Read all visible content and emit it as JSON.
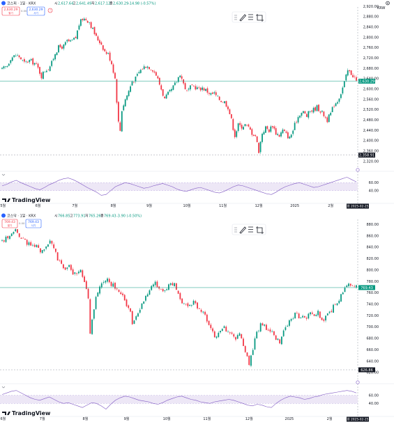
{
  "panels": [
    {
      "symbol": "코스피 · 1일 · KRX",
      "ohlc": {
        "open_label": "시",
        "open": "2,617.64",
        "high_label": "고",
        "high": "2,641.49",
        "low_label": "저",
        "low": "2,617.12",
        "close_label": "종",
        "close": "2,630.29",
        "change": "-14.98 (-0.57%)"
      },
      "sell_price": "2,630.29",
      "sell_label": "팔기",
      "spread": "0.00",
      "buy_price": "2,630.29",
      "buy_label": "사기",
      "currency": "KRW",
      "last_price_tag": "2,630.29",
      "low_price_tag": "2,358.91",
      "date_tag": "화 2025-02-25",
      "indicator_marks": [
        "60.00",
        "40.00"
      ],
      "colors": {
        "up": "#089981",
        "down": "#f23645",
        "rsi": "#7e57c2",
        "last": "#089981",
        "band": "#ede7f6"
      },
      "chart_data": {
        "type": "candlestick",
        "title": "코스피 · 1일 · KRX",
        "ylim": [
          2300,
          2920
        ],
        "yticks": [
          "2,920.00",
          "2,880.00",
          "2,840.00",
          "2,800.00",
          "2,760.00",
          "2,720.00",
          "2,680.00",
          "2,640.00",
          "2,600.00",
          "2,560.00",
          "2,520.00",
          "2,480.00",
          "2,440.00",
          "2,400.00",
          "2,360.00",
          "2,320.00"
        ],
        "ytick_values": [
          2920,
          2880,
          2840,
          2800,
          2760,
          2720,
          2680,
          2640,
          2600,
          2560,
          2520,
          2480,
          2440,
          2400,
          2360,
          2320
        ],
        "xticks": [
          "5월",
          "6월",
          "7월",
          "8월",
          "9월",
          "10월",
          "11월",
          "12월",
          "2025",
          "2월"
        ],
        "xtick_positions": [
          0.5,
          21,
          42.5,
          65,
          86,
          108,
          129,
          150,
          171,
          192
        ],
        "n_bars": 208,
        "close_path": [
          [
            0,
            2675
          ],
          [
            3,
            2690
          ],
          [
            5,
            2720
          ],
          [
            8,
            2730
          ],
          [
            10,
            2725
          ],
          [
            13,
            2700
          ],
          [
            16,
            2710
          ],
          [
            19,
            2700
          ],
          [
            21,
            2680
          ],
          [
            23,
            2650
          ],
          [
            25,
            2672
          ],
          [
            27,
            2680
          ],
          [
            29,
            2700
          ],
          [
            31,
            2740
          ],
          [
            33,
            2760
          ],
          [
            36,
            2765
          ],
          [
            38,
            2785
          ],
          [
            40,
            2780
          ],
          [
            43,
            2798
          ],
          [
            45,
            2850
          ],
          [
            47,
            2872
          ],
          [
            49,
            2870
          ],
          [
            51,
            2860
          ],
          [
            53,
            2830
          ],
          [
            55,
            2800
          ],
          [
            58,
            2775
          ],
          [
            60,
            2745
          ],
          [
            62,
            2735
          ],
          [
            64,
            2700
          ],
          [
            66,
            2641
          ],
          [
            68,
            2470
          ],
          [
            69,
            2440
          ],
          [
            70,
            2520
          ],
          [
            72,
            2560
          ],
          [
            74,
            2592
          ],
          [
            76,
            2630
          ],
          [
            78,
            2640
          ],
          [
            80,
            2665
          ],
          [
            82,
            2680
          ],
          [
            84,
            2690
          ],
          [
            86,
            2685
          ],
          [
            88,
            2676
          ],
          [
            90,
            2655
          ],
          [
            93,
            2600
          ],
          [
            95,
            2560
          ],
          [
            97,
            2580
          ],
          [
            99,
            2595
          ],
          [
            102,
            2630
          ],
          [
            104,
            2660
          ],
          [
            106,
            2620
          ],
          [
            108,
            2590
          ],
          [
            110,
            2605
          ],
          [
            112,
            2610
          ],
          [
            115,
            2600
          ],
          [
            117,
            2605
          ],
          [
            120,
            2590
          ],
          [
            122,
            2580
          ],
          [
            124,
            2582
          ],
          [
            126,
            2565
          ],
          [
            128,
            2555
          ],
          [
            130,
            2550
          ],
          [
            132,
            2530
          ],
          [
            134,
            2480
          ],
          [
            136,
            2420
          ],
          [
            138,
            2460
          ],
          [
            140,
            2455
          ],
          [
            142,
            2462
          ],
          [
            144,
            2450
          ],
          [
            146,
            2430
          ],
          [
            148,
            2420
          ],
          [
            150,
            2360
          ],
          [
            152,
            2430
          ],
          [
            154,
            2450
          ],
          [
            156,
            2440
          ],
          [
            158,
            2460
          ],
          [
            160,
            2430
          ],
          [
            162,
            2420
          ],
          [
            164,
            2440
          ],
          [
            166,
            2425
          ],
          [
            168,
            2410
          ],
          [
            170,
            2440
          ],
          [
            172,
            2480
          ],
          [
            174,
            2505
          ],
          [
            176,
            2510
          ],
          [
            178,
            2495
          ],
          [
            180,
            2515
          ],
          [
            182,
            2520
          ],
          [
            184,
            2530
          ],
          [
            186,
            2515
          ],
          [
            188,
            2500
          ],
          [
            190,
            2480
          ],
          [
            192,
            2505
          ],
          [
            194,
            2540
          ],
          [
            196,
            2555
          ],
          [
            198,
            2585
          ],
          [
            200,
            2625
          ],
          [
            202,
            2670
          ],
          [
            204,
            2660
          ],
          [
            206,
            2645
          ],
          [
            207,
            2630
          ]
        ],
        "rsi": {
          "ylim": [
            20,
            80
          ],
          "marks": [
            60,
            40
          ],
          "values": [
            52,
            56,
            62,
            66,
            60,
            55,
            50,
            45,
            42,
            48,
            55,
            60,
            66,
            70,
            72,
            68,
            62,
            55,
            48,
            42,
            36,
            28,
            30,
            40,
            50,
            55,
            60,
            58,
            54,
            50,
            46,
            48,
            52,
            55,
            58,
            54,
            50,
            44,
            40,
            38,
            42,
            46,
            48,
            44,
            40,
            36,
            34,
            38,
            44,
            50,
            54,
            52,
            48,
            44,
            40,
            36,
            32,
            30,
            36,
            44,
            50,
            54,
            58,
            60,
            56,
            52,
            48,
            50,
            54,
            58,
            62,
            66,
            70,
            74,
            68,
            62
          ]
        }
      }
    },
    {
      "symbol": "코스닥 · 1일 · KRX",
      "ohlc": {
        "open_label": "시",
        "open": "766.85",
        "high_label": "고",
        "high": "773.91",
        "low_label": "저",
        "low": "765.26",
        "close_label": "종",
        "close": "769.43",
        "change": "-3.90 (-0.50%)"
      },
      "sell_price": "769.43",
      "sell_label": "팔기",
      "spread": "0.00",
      "buy_price": "769.43",
      "buy_label": "사기",
      "currency": "KRW",
      "last_price_tag": "769.43",
      "low_price_tag": "626.86",
      "date_tag": "화 2025-02-25",
      "indicator_marks": [
        "60.00",
        "40.00"
      ],
      "colors": {
        "up": "#089981",
        "down": "#f23645",
        "rsi": "#7e57c2",
        "last": "#089981",
        "band": "#ede7f6"
      },
      "chart_data": {
        "type": "candlestick",
        "title": "코스닥 · 1일 · KRX",
        "ylim": [
          610,
          890
        ],
        "yticks": [
          "880.00",
          "860.00",
          "840.00",
          "820.00",
          "800.00",
          "780.00",
          "760.00",
          "740.00",
          "720.00",
          "700.00",
          "680.00",
          "660.00",
          "640.00",
          "620.00"
        ],
        "ytick_values": [
          880,
          860,
          840,
          820,
          800,
          780,
          760,
          740,
          720,
          700,
          680,
          660,
          640,
          620
        ],
        "xticks": [
          "6월",
          "7월",
          "8월",
          "9월",
          "10월",
          "11월",
          "12월",
          "2025",
          "2월"
        ],
        "xtick_positions": [
          0.5,
          21,
          43.5,
          65,
          86,
          107,
          129,
          150,
          171
        ],
        "n_bars": 186,
        "close_path": [
          [
            0,
            850
          ],
          [
            3,
            858
          ],
          [
            5,
            865
          ],
          [
            7,
            870
          ],
          [
            9,
            862
          ],
          [
            11,
            855
          ],
          [
            13,
            848
          ],
          [
            16,
            845
          ],
          [
            19,
            838
          ],
          [
            21,
            832
          ],
          [
            23,
            840
          ],
          [
            25,
            850
          ],
          [
            27,
            838
          ],
          [
            29,
            820
          ],
          [
            31,
            810
          ],
          [
            33,
            800
          ],
          [
            35,
            805
          ],
          [
            37,
            790
          ],
          [
            39,
            796
          ],
          [
            41,
            800
          ],
          [
            43,
            780
          ],
          [
            45,
            748
          ],
          [
            46,
            690
          ],
          [
            47,
            715
          ],
          [
            49,
            750
          ],
          [
            51,
            770
          ],
          [
            53,
            780
          ],
          [
            55,
            785
          ],
          [
            57,
            775
          ],
          [
            59,
            770
          ],
          [
            61,
            760
          ],
          [
            63,
            755
          ],
          [
            65,
            740
          ],
          [
            67,
            725
          ],
          [
            68,
            705
          ],
          [
            70,
            720
          ],
          [
            72,
            730
          ],
          [
            74,
            745
          ],
          [
            76,
            760
          ],
          [
            78,
            770
          ],
          [
            80,
            776
          ],
          [
            82,
            770
          ],
          [
            84,
            762
          ],
          [
            86,
            770
          ],
          [
            88,
            775
          ],
          [
            90,
            778
          ],
          [
            92,
            760
          ],
          [
            94,
            745
          ],
          [
            96,
            740
          ],
          [
            98,
            735
          ],
          [
            100,
            745
          ],
          [
            102,
            735
          ],
          [
            104,
            728
          ],
          [
            106,
            720
          ],
          [
            108,
            700
          ],
          [
            110,
            690
          ],
          [
            112,
            682
          ],
          [
            114,
            690
          ],
          [
            116,
            700
          ],
          [
            118,
            690
          ],
          [
            120,
            688
          ],
          [
            122,
            680
          ],
          [
            124,
            690
          ],
          [
            126,
            670
          ],
          [
            128,
            645
          ],
          [
            129,
            632
          ],
          [
            131,
            662
          ],
          [
            133,
            690
          ],
          [
            135,
            705
          ],
          [
            137,
            700
          ],
          [
            139,
            690
          ],
          [
            141,
            688
          ],
          [
            143,
            680
          ],
          [
            145,
            672
          ],
          [
            147,
            690
          ],
          [
            149,
            705
          ],
          [
            151,
            715
          ],
          [
            153,
            722
          ],
          [
            155,
            718
          ],
          [
            157,
            722
          ],
          [
            159,
            718
          ],
          [
            161,
            725
          ],
          [
            163,
            722
          ],
          [
            165,
            725
          ],
          [
            167,
            710
          ],
          [
            169,
            718
          ],
          [
            171,
            725
          ],
          [
            173,
            735
          ],
          [
            175,
            745
          ],
          [
            177,
            755
          ],
          [
            179,
            768
          ],
          [
            181,
            775
          ],
          [
            183,
            772
          ],
          [
            185,
            769
          ]
        ],
        "rsi": {
          "ylim": [
            20,
            80
          ],
          "marks": [
            60,
            40
          ],
          "values": [
            62,
            66,
            70,
            72,
            66,
            60,
            54,
            50,
            48,
            52,
            56,
            50,
            44,
            40,
            42,
            38,
            34,
            30,
            36,
            42,
            40,
            34,
            26,
            38,
            48,
            54,
            58,
            56,
            52,
            48,
            46,
            44,
            40,
            38,
            42,
            48,
            52,
            56,
            58,
            54,
            50,
            48,
            44,
            42,
            40,
            44,
            46,
            48,
            50,
            48,
            44,
            40,
            36,
            34,
            38,
            36,
            32,
            30,
            40,
            48,
            54,
            58,
            56,
            54,
            50,
            52,
            56,
            58,
            62,
            64,
            66,
            68,
            70,
            72,
            70,
            66
          ]
        }
      }
    }
  ],
  "branding": {
    "logo_text": "TradingView"
  },
  "toolbar": {
    "items": [
      "pencil-tool",
      "lines-tool",
      "crop-tool"
    ]
  }
}
